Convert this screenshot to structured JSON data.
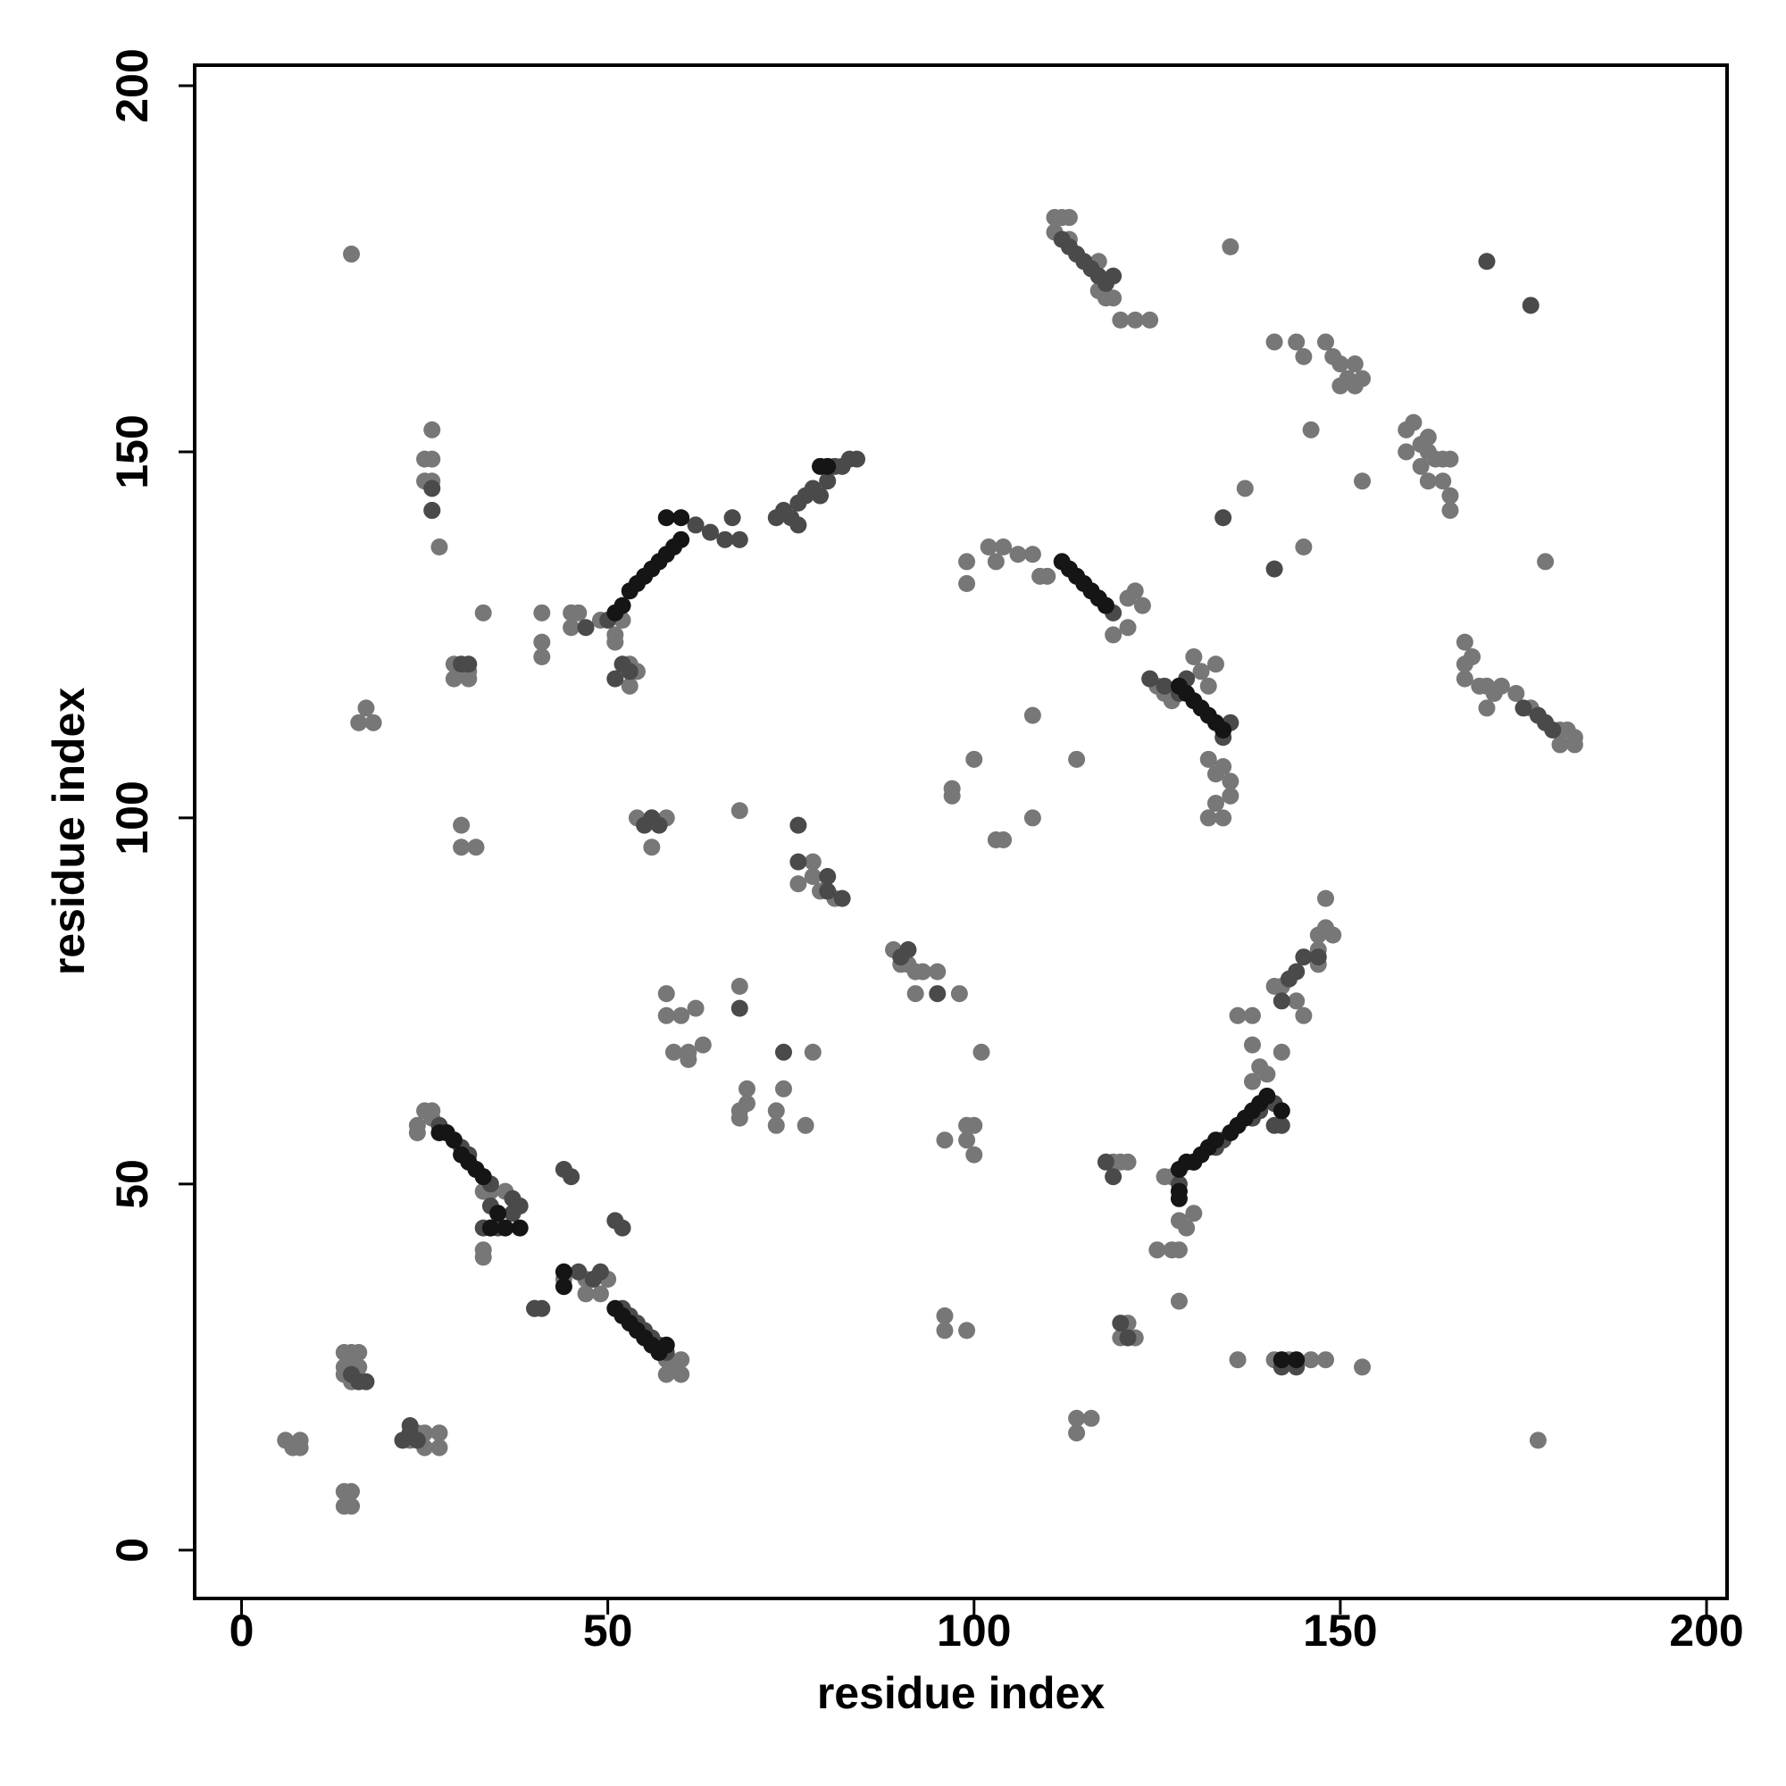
{
  "chart_data": {
    "type": "scatter",
    "xlabel": "residue index",
    "ylabel": "residue index",
    "xlim": [
      -6.4,
      202.8
    ],
    "ylim": [
      -6.6,
      202.8
    ],
    "xticks": [
      0,
      50,
      100,
      150,
      200
    ],
    "yticks": [
      0,
      50,
      100,
      150,
      200
    ],
    "series": [
      {
        "color": "#777777",
        "x": [
          15,
          26,
          26,
          25,
          26,
          25,
          26,
          27,
          33,
          17,
          18,
          16,
          29,
          29,
          31,
          31,
          30,
          30,
          32,
          41,
          41,
          41,
          45,
          46,
          45,
          49,
          52,
          51,
          51,
          53,
          53,
          54,
          54,
          56,
          58,
          56,
          68,
          6,
          7,
          8,
          8,
          14,
          15,
          14,
          15,
          14,
          15,
          16,
          14,
          15,
          16,
          14,
          15,
          23,
          24,
          25,
          23,
          25,
          27,
          27,
          25,
          26,
          24,
          24,
          26,
          33,
          34,
          36,
          33,
          33,
          35,
          40,
          44,
          47,
          47,
          49,
          50,
          58,
          58,
          60,
          60,
          59,
          58,
          58,
          60,
          62,
          59,
          61,
          61,
          63,
          68,
          68,
          68,
          69,
          69,
          73,
          73,
          74,
          77,
          78,
          76,
          78,
          78,
          79,
          81,
          89,
          90,
          91,
          92,
          93,
          95,
          92,
          98,
          101,
          99,
          100,
          99,
          100,
          96,
          96,
          96,
          99,
          97,
          97,
          100,
          108,
          108,
          103,
          104,
          114,
          114,
          114,
          116,
          99,
          99,
          102,
          104,
          106,
          108,
          109,
          110,
          103,
          111,
          112,
          113,
          111,
          113,
          117,
          117,
          119,
          120,
          122,
          124,
          118,
          122,
          121,
          123,
          119,
          121,
          119,
          120,
          121,
          121,
          120,
          122,
          125,
          127,
          128,
          126,
          127,
          128,
          129,
          130,
          128,
          125,
          126,
          127,
          130,
          131,
          133,
          132,
          132,
          133,
          134,
          135,
          135,
          133,
          134,
          132,
          135,
          137,
          136,
          141,
          143,
          146,
          148,
          153,
          136,
          138,
          138,
          139,
          138,
          140,
          142,
          140,
          141,
          142,
          144,
          145,
          147,
          147,
          147,
          148,
          149,
          148,
          141,
          144,
          145,
          148,
          149,
          150,
          151,
          152,
          153,
          150,
          152,
          146,
          145,
          153,
          159,
          159,
          160,
          161,
          162,
          162,
          163,
          164,
          165,
          161,
          162,
          164,
          165,
          165,
          167,
          167,
          167,
          168,
          169,
          170,
          170,
          171,
          172,
          174,
          176,
          178,
          180,
          181,
          182,
          180,
          182,
          177,
          178
        ],
        "y": [
          177,
          153,
          149,
          149,
          146,
          146,
          142,
          137,
          128,
          115,
          113,
          113,
          121,
          119,
          120,
          119,
          99,
          96,
          96,
          128,
          124,
          122,
          128,
          128,
          126,
          127,
          127,
          125,
          124,
          121,
          118,
          120,
          100,
          100,
          100,
          96,
          101,
          15,
          14,
          15,
          14,
          8,
          8,
          6,
          6,
          27,
          27,
          27,
          25,
          25,
          25,
          24,
          23,
          16,
          16,
          16,
          15,
          14,
          16,
          14,
          60,
          60,
          58,
          57,
          59,
          49,
          49,
          49,
          40,
          41,
          46,
          33,
          37,
          35,
          37,
          35,
          37,
          24,
          26,
          24,
          26,
          25,
          76,
          73,
          73,
          74,
          68,
          68,
          67,
          69,
          77,
          60,
          59,
          63,
          61,
          60,
          58,
          63,
          58,
          68,
          91,
          94,
          92,
          90,
          89,
          82,
          80,
          80,
          79,
          79,
          79,
          76,
          76,
          68,
          58,
          58,
          56,
          54,
          56,
          32,
          30,
          30,
          104,
          103,
          108,
          114,
          100,
          97,
          97,
          108,
          18,
          16,
          18,
          135,
          132,
          137,
          137,
          136,
          136,
          133,
          133,
          135,
          182,
          182,
          182,
          180,
          179,
          176,
          172,
          171,
          168,
          168,
          168,
          171,
          131,
          130,
          129,
          125,
          126,
          53,
          53,
          53,
          31,
          29,
          29,
          41,
          41,
          41,
          51,
          51,
          45,
          44,
          46,
          34,
          118,
          117,
          116,
          122,
          120,
          121,
          118,
          108,
          106,
          107,
          105,
          103,
          102,
          100,
          100,
          178,
          145,
          26,
          26,
          26,
          26,
          26,
          25,
          73,
          73,
          69,
          66,
          64,
          65,
          68,
          62,
          77,
          77,
          75,
          73,
          80,
          82,
          84,
          85,
          84,
          89,
          165,
          165,
          163,
          165,
          163,
          162,
          160,
          162,
          160,
          159,
          159,
          153,
          137,
          146,
          153,
          150,
          154,
          151,
          152,
          150,
          149,
          149,
          149,
          148,
          146,
          146,
          144,
          142,
          124,
          121,
          119,
          122,
          118,
          118,
          115,
          117,
          118,
          117,
          115,
          113,
          112,
          112,
          111,
          110,
          110,
          15,
          135
        ]
      },
      {
        "color": "#4a4a4a",
        "x": [
          26,
          26,
          30,
          31,
          47,
          50,
          52,
          53,
          51,
          56,
          57,
          55,
          44,
          45,
          51,
          52,
          40,
          41,
          46,
          48,
          49,
          16,
          17,
          15,
          23,
          23,
          22,
          24,
          27,
          28,
          29,
          30,
          31,
          32,
          33,
          34,
          34,
          37,
          37,
          38,
          33,
          34,
          35,
          52,
          53,
          54,
          55,
          56,
          57,
          58,
          68,
          74,
          76,
          76,
          80,
          80,
          82,
          90,
          91,
          95,
          62,
          64,
          66,
          68,
          67,
          73,
          74,
          75,
          76,
          77,
          78,
          79,
          76,
          80,
          81,
          83,
          84,
          82,
          112,
          113,
          114,
          115,
          116,
          117,
          118,
          119,
          116,
          117,
          118,
          119,
          124,
          126,
          128,
          129,
          135,
          134,
          141,
          142,
          141,
          138,
          139,
          142,
          144,
          142,
          143,
          144,
          145,
          147,
          136,
          134,
          133,
          130,
          128,
          120,
          121,
          134,
          141,
          170,
          176,
          118,
          119,
          175,
          177,
          178,
          179
        ],
        "y": [
          145,
          142,
          121,
          121,
          126,
          127,
          121,
          120,
          119,
          100,
          99,
          99,
          52,
          51,
          45,
          44,
          33,
          33,
          38,
          37,
          38,
          23,
          23,
          24,
          17,
          16,
          15,
          15,
          58,
          57,
          56,
          55,
          54,
          52,
          51,
          50,
          47,
          48,
          46,
          47,
          44,
          44,
          44,
          33,
          32,
          31,
          30,
          29,
          28,
          27,
          74,
          68,
          99,
          94,
          92,
          90,
          89,
          81,
          82,
          76,
          140,
          139,
          138,
          138,
          141,
          141,
          142,
          141,
          143,
          144,
          145,
          144,
          140,
          146,
          148,
          149,
          149,
          148,
          179,
          178,
          177,
          176,
          175,
          174,
          173,
          174,
          131,
          130,
          129,
          128,
          119,
          118,
          117,
          119,
          113,
          111,
          61,
          58,
          58,
          59,
          60,
          25,
          25,
          75,
          78,
          79,
          81,
          81,
          58,
          56,
          55,
          53,
          50,
          31,
          29,
          141,
          134,
          176,
          170,
          53,
          51,
          115,
          114,
          113,
          112
        ]
      },
      {
        "color": "#151515",
        "x": [
          27,
          28,
          29,
          30,
          31,
          32,
          33,
          35,
          38,
          34,
          36,
          44,
          44,
          51,
          52,
          53,
          54,
          55,
          56,
          57,
          58,
          51,
          52,
          53,
          54,
          55,
          56,
          57,
          58,
          59,
          60,
          58,
          60,
          79,
          80,
          112,
          113,
          114,
          115,
          116,
          117,
          118,
          128,
          129,
          130,
          131,
          132,
          133,
          134,
          128,
          129,
          130,
          131,
          132,
          133,
          135,
          136,
          137,
          138,
          139,
          140,
          142,
          142,
          144,
          128,
          128
        ],
        "y": [
          57,
          57,
          56,
          54,
          53,
          52,
          51,
          46,
          44,
          44,
          44,
          38,
          36,
          33,
          32,
          31,
          30,
          29,
          28,
          27,
          28,
          128,
          129,
          131,
          132,
          133,
          134,
          135,
          136,
          137,
          138,
          141,
          141,
          148,
          148,
          135,
          134,
          133,
          132,
          131,
          130,
          129,
          118,
          117,
          116,
          115,
          114,
          113,
          112,
          52,
          53,
          53,
          54,
          55,
          56,
          57,
          58,
          59,
          60,
          61,
          62,
          60,
          26,
          26,
          48,
          49
        ]
      }
    ]
  }
}
